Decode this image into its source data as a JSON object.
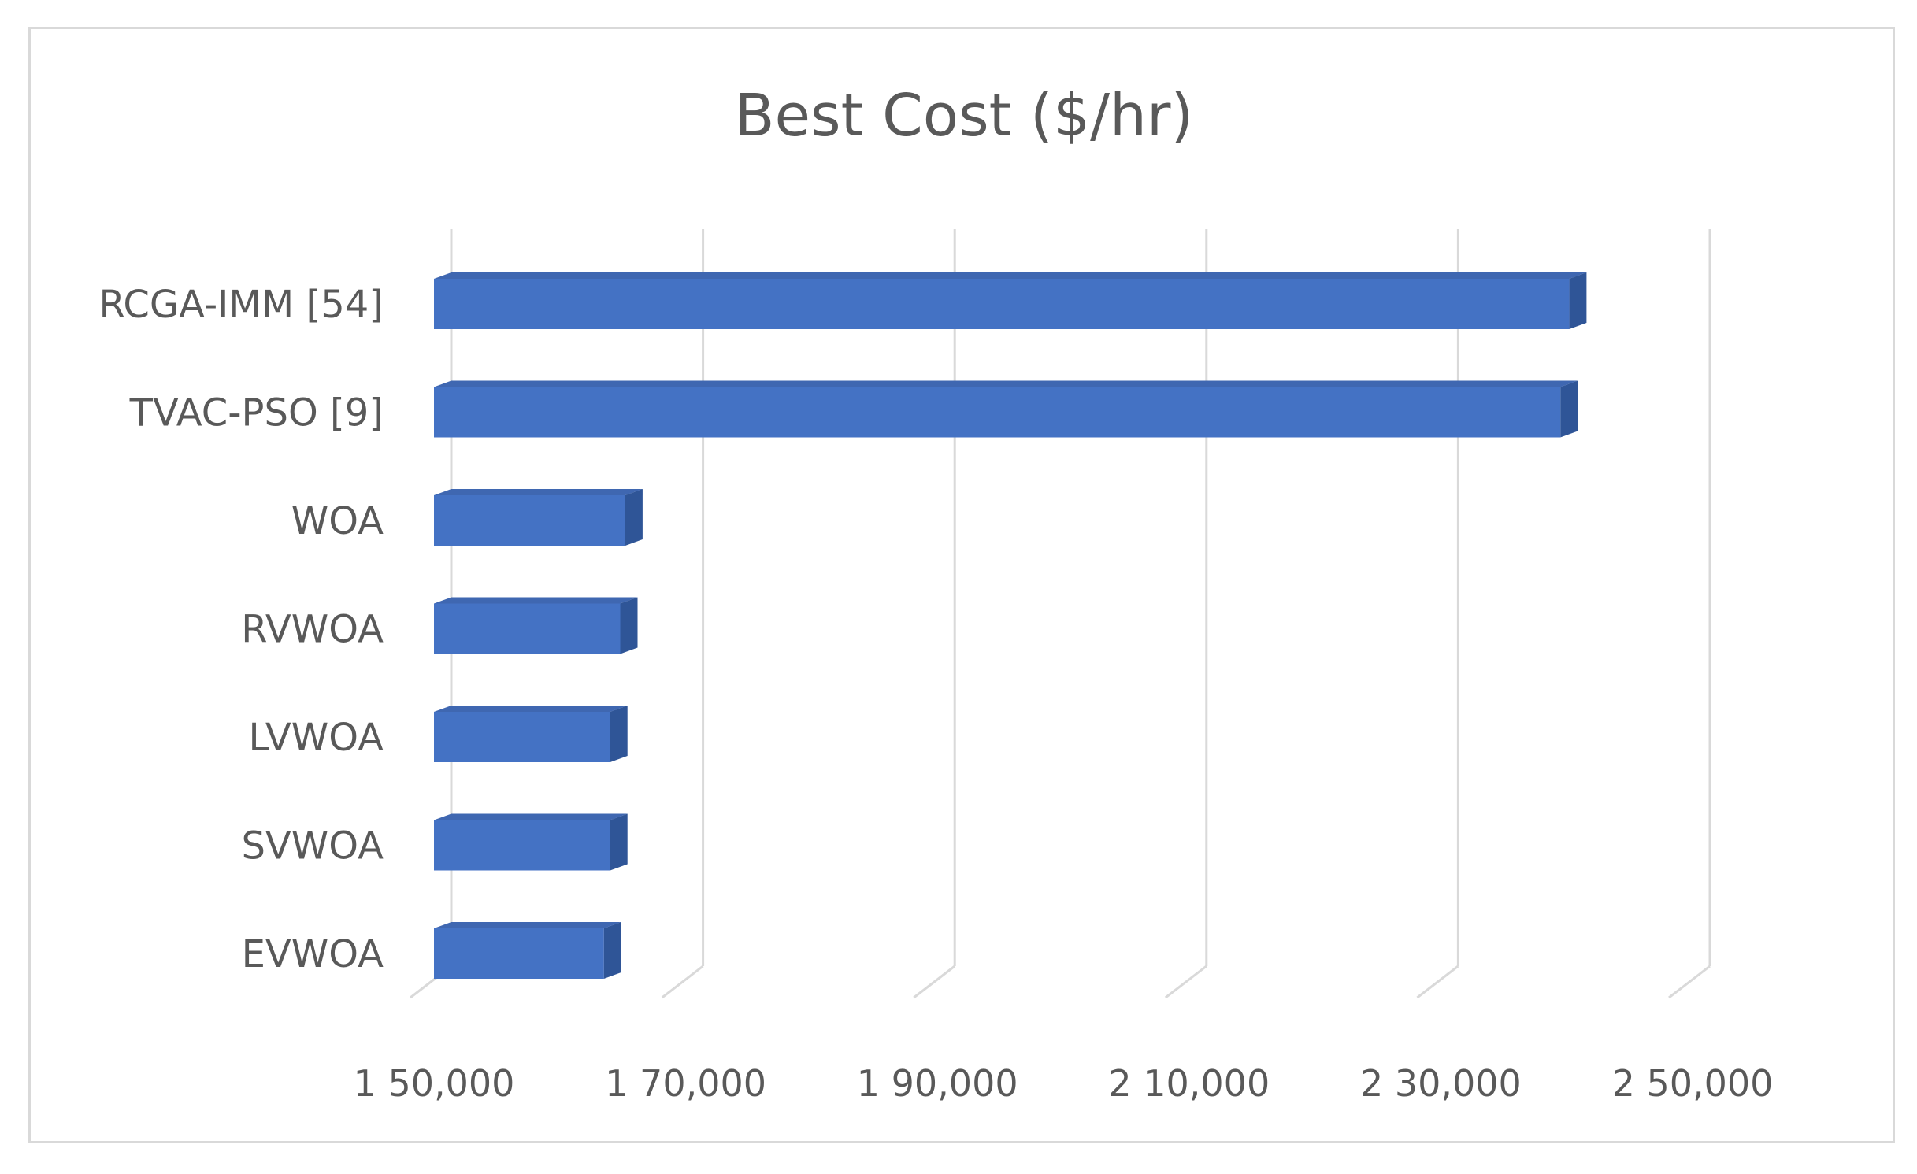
{
  "chart_data": {
    "type": "bar",
    "orientation": "horizontal",
    "style": "3d",
    "title": "Best Cost ($/hr)",
    "categories": [
      "RCGA-IMM [54]",
      "TVAC-PSO [9]",
      "WOA",
      "RVWOA",
      "LVWOA",
      "SVWOA",
      "EVWOA"
    ],
    "values": [
      240200,
      239500,
      165200,
      164800,
      164000,
      164000,
      163500
    ],
    "xlim": [
      150000,
      253000
    ],
    "ticks": [
      150000,
      170000,
      190000,
      210000,
      230000,
      250000
    ],
    "tick_labels": [
      "1 50,000",
      "1 70,000",
      "1 90,000",
      "2 10,000",
      "2 30,000",
      "2 50,000"
    ],
    "grid": true,
    "legend": "none",
    "colors": {
      "bar_front": "#4472c4",
      "bar_top": "#3f67b1",
      "bar_side": "#2f5597",
      "grid": "#d9d9d9",
      "text": "#595959",
      "border": "#d9d9d9"
    }
  }
}
